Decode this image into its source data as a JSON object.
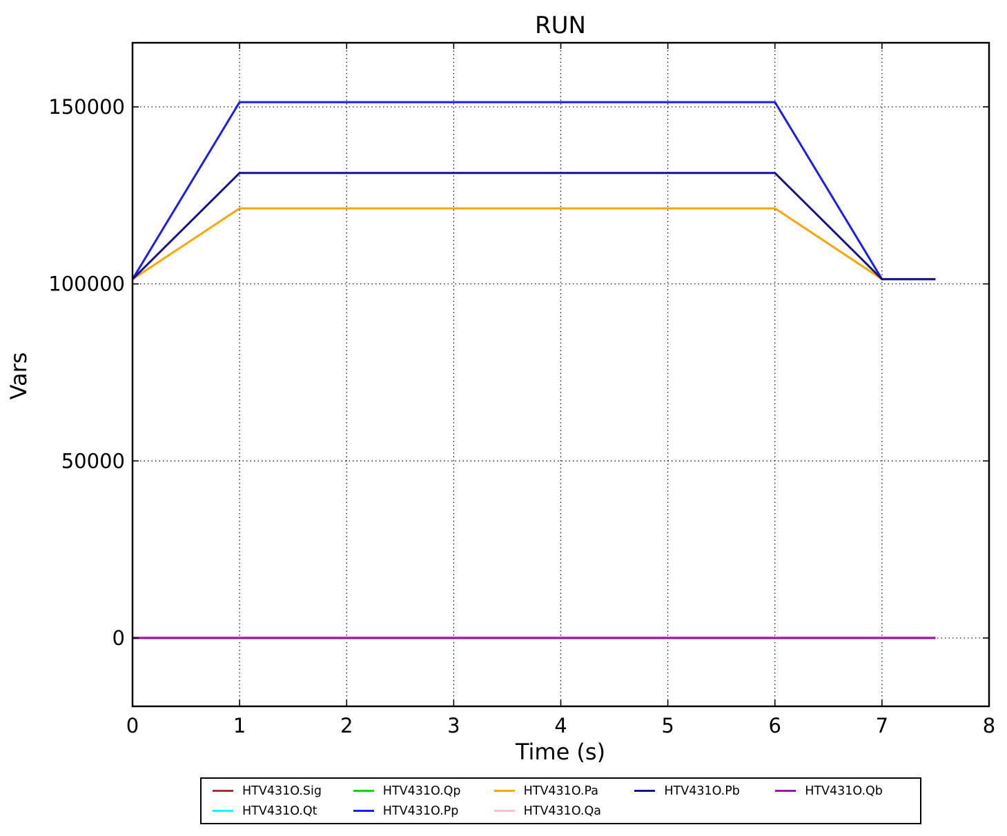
{
  "chart_data": {
    "type": "line",
    "title": "RUN",
    "xlabel": "Time (s)",
    "ylabel": "Vars",
    "xlim": [
      0,
      8
    ],
    "ylim": [
      -19300,
      168100
    ],
    "xticks": [
      0,
      1,
      2,
      3,
      4,
      5,
      6,
      7,
      8
    ],
    "yticks": [
      0,
      50000,
      100000,
      150000
    ],
    "grid": "dotted-black-major",
    "legend_position": "bottom-outside",
    "axis_color": "#000000",
    "background_color": "#ffffff",
    "series": [
      {
        "name": "HTV431O.Sig",
        "color": "#A13434",
        "lw": 3,
        "points": [
          [
            0,
            0
          ],
          [
            7.5,
            0
          ]
        ]
      },
      {
        "name": "HTV431O.Qt",
        "color": "#00FFFF",
        "lw": 3,
        "points": [
          [
            0,
            0
          ],
          [
            7.5,
            0
          ]
        ]
      },
      {
        "name": "HTV431O.Qp",
        "color": "#00DD00",
        "lw": 3,
        "points": [
          [
            0,
            0
          ],
          [
            7.5,
            0
          ]
        ]
      },
      {
        "name": "HTV431O.Pp",
        "color": "#1A1AFF",
        "lw": 3,
        "points": [
          [
            0,
            101325
          ],
          [
            1,
            151325
          ],
          [
            6,
            151325
          ],
          [
            7,
            101325
          ],
          [
            7.5,
            101325
          ]
        ]
      },
      {
        "name": "HTV431O.Pa",
        "color": "#FFA500",
        "lw": 3,
        "points": [
          [
            0,
            101325
          ],
          [
            1,
            121325
          ],
          [
            6,
            121325
          ],
          [
            7,
            101325
          ],
          [
            7.5,
            101325
          ]
        ]
      },
      {
        "name": "HTV431O.Qa",
        "color": "#FFC0CB",
        "lw": 4.5,
        "points": [
          [
            0,
            0
          ],
          [
            7.5,
            0
          ]
        ]
      },
      {
        "name": "HTV431O.Pb",
        "color": "#14148C",
        "lw": 3,
        "points": [
          [
            0,
            101325
          ],
          [
            1,
            131325
          ],
          [
            6,
            131325
          ],
          [
            7,
            101325
          ],
          [
            7.5,
            101325
          ]
        ]
      },
      {
        "name": "HTV431O.Qb",
        "color": "#8E1C9C",
        "lw": 3,
        "points": [
          [
            0,
            0
          ],
          [
            7.5,
            0
          ]
        ]
      }
    ],
    "legend_columns": [
      [
        0,
        1
      ],
      [
        2,
        3
      ],
      [
        4,
        5
      ],
      [
        6
      ],
      [
        7
      ]
    ]
  }
}
